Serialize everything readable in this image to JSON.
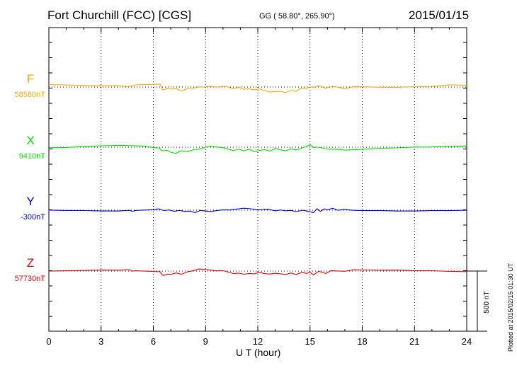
{
  "header": {
    "station": "Fort Churchill (FCC)  [CGS]",
    "coords": "GG ( 58.80°, 265.90°)",
    "date": "2015/01/15"
  },
  "footer": {
    "xlabel": "U T (hour)",
    "plotted": "Plotted at 2015/02/15 01:30 UT"
  },
  "scale_bar": {
    "label": "500 nT"
  },
  "colors": {
    "F": "#f2a900",
    "X": "#00dd00",
    "Y": "#0000cc",
    "Z": "#e60000"
  },
  "chart_data": {
    "type": "line",
    "xlabel": "U T (hour)",
    "xlim": [
      0,
      24
    ],
    "xticks": [
      0,
      3,
      6,
      9,
      12,
      15,
      18,
      21,
      24
    ],
    "xtick_labels": [
      "0",
      "3",
      "6",
      "9",
      "12",
      "15",
      "18",
      "21",
      "24"
    ],
    "ylabel_unit": "nT",
    "grid": true,
    "scale_bar_nT": 500,
    "series": [
      {
        "name": "F",
        "baseline_label": "58580nT",
        "baseline": 58580,
        "x": [
          0,
          1,
          2,
          3,
          4,
          4.6,
          4.8,
          5,
          5.5,
          6,
          6.4,
          6.5,
          6.6,
          6.8,
          7,
          7.3,
          7.6,
          8,
          8.3,
          8.6,
          8.9,
          9.2,
          9.6,
          10,
          10.3,
          10.6,
          10.9,
          11.2,
          11.5,
          11.8,
          12.1,
          12.4,
          12.7,
          13,
          13.3,
          13.6,
          13.9,
          14.2,
          14.5,
          14.8,
          15,
          15.2,
          15.5,
          15.9,
          16.2,
          16.6,
          17,
          17.5,
          18,
          19,
          20,
          21,
          22,
          23,
          24
        ],
        "y": [
          20,
          20,
          18,
          18,
          18,
          10,
          16,
          20,
          18,
          18,
          18,
          -25,
          -30,
          -15,
          -20,
          -12,
          -30,
          -5,
          -2,
          8,
          5,
          10,
          0,
          5,
          -5,
          -20,
          -10,
          -25,
          -20,
          -25,
          -15,
          -25,
          -35,
          -30,
          -30,
          -40,
          -25,
          -35,
          -10,
          -15,
          -5,
          -10,
          5,
          -15,
          5,
          0,
          -10,
          10,
          10,
          5,
          2,
          5,
          5,
          15,
          10
        ]
      },
      {
        "name": "X",
        "baseline_label": "9410nT",
        "baseline": 9410,
        "x": [
          0,
          1,
          2,
          3,
          4,
          5,
          5.5,
          6,
          6.3,
          6.5,
          6.8,
          7,
          7.3,
          7.6,
          8,
          8.3,
          8.6,
          9,
          9.3,
          9.6,
          10,
          10.3,
          10.6,
          10.9,
          11.2,
          11.5,
          11.8,
          12.1,
          12.4,
          12.7,
          13,
          13.3,
          13.6,
          13.9,
          14.2,
          14.5,
          14.8,
          15,
          15.2,
          15.5,
          15.8,
          16.2,
          16.6,
          17,
          18,
          19,
          20,
          21,
          22,
          23,
          24
        ],
        "y": [
          -5,
          -5,
          0,
          5,
          8,
          5,
          5,
          -5,
          -5,
          -25,
          -20,
          -35,
          -45,
          -25,
          -35,
          -20,
          -20,
          -5,
          0,
          -5,
          -10,
          -20,
          -30,
          -15,
          -25,
          -10,
          -30,
          -20,
          -15,
          -30,
          -10,
          -25,
          -35,
          -20,
          -30,
          -15,
          5,
          20,
          0,
          5,
          -5,
          -10,
          -10,
          -20,
          -15,
          -10,
          -10,
          -5,
          -5,
          0,
          5
        ]
      },
      {
        "name": "Y",
        "baseline_label": "-300nT",
        "baseline": -300,
        "x": [
          0,
          1,
          2,
          3,
          4,
          4.6,
          4.8,
          5,
          5.5,
          6,
          6.3,
          6.6,
          6.9,
          7.2,
          7.5,
          7.8,
          8.1,
          8.4,
          8.7,
          9,
          9.3,
          9.6,
          10,
          10.4,
          10.8,
          11.2,
          11.6,
          12,
          12.3,
          12.6,
          13,
          13.3,
          13.6,
          13.9,
          14.2,
          14.6,
          15,
          15.2,
          15.4,
          15.6,
          15.8,
          16,
          16.3,
          16.6,
          17,
          17.4,
          18,
          19,
          20,
          21,
          22,
          23,
          24
        ],
        "y": [
          0,
          0,
          2,
          0,
          0,
          5,
          -5,
          0,
          0,
          0,
          5,
          -10,
          -5,
          -15,
          -5,
          -10,
          -5,
          -15,
          5,
          0,
          -5,
          0,
          5,
          0,
          5,
          10,
          5,
          -5,
          0,
          5,
          -5,
          5,
          0,
          5,
          -5,
          5,
          -10,
          -20,
          10,
          -15,
          5,
          -5,
          10,
          -5,
          5,
          0,
          0,
          2,
          0,
          0,
          2,
          0,
          0
        ]
      },
      {
        "name": "Z",
        "baseline_label": "57730nT",
        "baseline": 57730,
        "x": [
          0,
          1,
          2,
          3,
          4,
          4.6,
          4.8,
          5,
          5.5,
          6,
          6.4,
          6.5,
          6.6,
          6.8,
          7,
          7.3,
          7.6,
          8,
          8.3,
          8.6,
          8.9,
          9.2,
          9.6,
          10,
          10.3,
          10.6,
          10.9,
          11.2,
          11.5,
          11.8,
          12.1,
          12.4,
          12.7,
          13,
          13.3,
          13.6,
          13.9,
          14.2,
          14.5,
          14.8,
          15,
          15.2,
          15.5,
          15.9,
          16.2,
          16.6,
          17,
          17.5,
          18,
          19,
          20,
          21,
          22,
          23,
          24
        ],
        "y": [
          0,
          0,
          0,
          2,
          0,
          5,
          -5,
          0,
          0,
          0,
          0,
          -25,
          -30,
          -20,
          -25,
          -15,
          -30,
          -10,
          -5,
          10,
          8,
          5,
          0,
          5,
          -5,
          -15,
          -10,
          -20,
          -15,
          -20,
          -10,
          -25,
          -30,
          -25,
          -30,
          -35,
          -20,
          -30,
          -10,
          -15,
          -5,
          -25,
          5,
          -15,
          5,
          0,
          -5,
          5,
          2,
          0,
          2,
          0,
          2,
          0,
          0
        ]
      }
    ]
  }
}
